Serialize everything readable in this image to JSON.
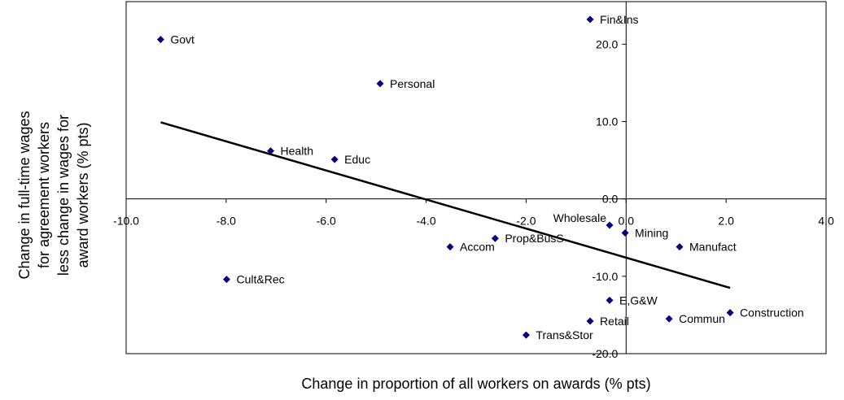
{
  "chart_data": {
    "type": "scatter",
    "xlabel": "Change in proportion of all workers on awards (% pts)",
    "ylabel": [
      "Change in full-time wages",
      "for agreement workers",
      "less change in wages for",
      "award workers  (% pts)"
    ],
    "xlim": [
      -10,
      4
    ],
    "ylim": [
      -20,
      25.5
    ],
    "xticks": [
      {
        "value": -10,
        "label": "-10.0"
      },
      {
        "value": -8,
        "label": "-8.0"
      },
      {
        "value": -6,
        "label": "-6.0"
      },
      {
        "value": -4,
        "label": "-4.0"
      },
      {
        "value": -2,
        "label": "-2.0"
      },
      {
        "value": 0,
        "label": "0.0"
      },
      {
        "value": 2,
        "label": "2.0"
      },
      {
        "value": 4,
        "label": "4.0"
      }
    ],
    "yticks": [
      {
        "value": -20,
        "label": "-20.0"
      },
      {
        "value": -10,
        "label": "-10.0"
      },
      {
        "value": 0,
        "label": "0.0"
      },
      {
        "value": 10,
        "label": "10.0"
      },
      {
        "value": 20,
        "label": "20.0"
      }
    ],
    "series": [
      {
        "color": "#000080",
        "point_labels": [
          "Govt",
          "Fin&Ins",
          "Personal",
          "Health",
          "Educ",
          "Wholesale",
          "Mining",
          "Manufact",
          "Prop&BusS",
          "Accom",
          "Cult&Rec",
          "E,G&W",
          "Retail",
          "Commun",
          "Construction",
          "Trans&Stor"
        ],
        "x": [
          -9.31,
          -0.72,
          -4.92,
          -7.11,
          -5.83,
          -0.33,
          -0.02,
          1.07,
          -2.62,
          -3.52,
          -7.99,
          -0.33,
          -0.72,
          0.86,
          2.08,
          -2.0
        ],
        "values": [
          20.6,
          23.2,
          14.9,
          6.2,
          5.1,
          -3.4,
          -4.4,
          -6.2,
          -5.1,
          -6.2,
          -10.4,
          -13.1,
          -15.8,
          -15.5,
          -14.7,
          -17.6
        ]
      }
    ],
    "trendline": {
      "color": "#000000",
      "x": [
        -9.31,
        2.08
      ],
      "y": [
        9.9,
        -11.5
      ]
    }
  }
}
